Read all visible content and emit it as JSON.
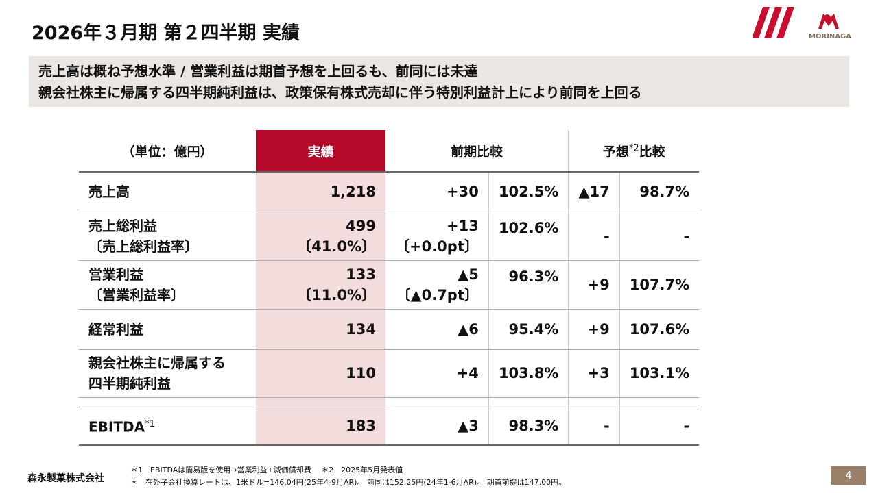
{
  "title": "2026年３月期 第２四半期 実績",
  "logo": {
    "text": "MORINAGA",
    "color": "#c8102e"
  },
  "banner": {
    "line1": "売上高は概ね予想水準 / 営業利益は期首予想を上回るも、前同には未達",
    "line2": "親会社株主に帰属する四半期純利益は、政策保有株式売却に伴う特別利益計上により前同を上回る"
  },
  "table": {
    "headers": {
      "unit": "（単位：億円）",
      "actual": "実績",
      "prev": "前期比較",
      "forecast": "予想",
      "forecast_sup": "*2",
      "forecast_suffix": "比較"
    },
    "rows": [
      {
        "l1": "売上高",
        "l2": "",
        "a1": "1,218",
        "a2": "",
        "pd1": "+30",
        "pd2": "",
        "pp": "102.5%",
        "fd": "▲17",
        "fp": "98.7%"
      },
      {
        "l1": "売上総利益",
        "l2": "〔売上総利益率〕",
        "a1": "499",
        "a2": "〔41.0%〕",
        "pd1": "+13",
        "pd2": "〔+0.0pt〕",
        "pp": "102.6%",
        "fd": "-",
        "fp": "-"
      },
      {
        "l1": "営業利益",
        "l2": "〔営業利益率〕",
        "a1": "133",
        "a2": "〔11.0%〕",
        "pd1": "▲5",
        "pd2": "〔▲0.7pt〕",
        "pp": "96.3%",
        "fd": "+9",
        "fp": "107.7%"
      },
      {
        "l1": "経常利益",
        "l2": "",
        "a1": "134",
        "a2": "",
        "pd1": "▲6",
        "pd2": "",
        "pp": "95.4%",
        "fd": "+9",
        "fp": "107.6%"
      },
      {
        "l1": "親会社株主に帰属する",
        "l2": "四半期純利益",
        "a1": "110",
        "a2": "",
        "pd1": "+4",
        "pd2": "",
        "pp": "103.8%",
        "fd": "+3",
        "fp": "103.1%"
      }
    ],
    "ebitda": {
      "label": "EBITDA",
      "sup": "*1",
      "a": "183",
      "pd": "▲3",
      "pp": "98.3%",
      "fd": "-",
      "fp": "-"
    }
  },
  "footer": {
    "company": "森永製菓株式会社",
    "note1": "＊1　EBITDAは簡易版を使用→営業利益+減価償却費　 ＊2　2025年5月発表値",
    "note2": "＊　在外子会社換算レートは、1米ドル=146.04円(25年4-9月AR)。 前同は152.25円(24年1-6月AR)。 期首前提は147.00円。",
    "page": "4"
  }
}
